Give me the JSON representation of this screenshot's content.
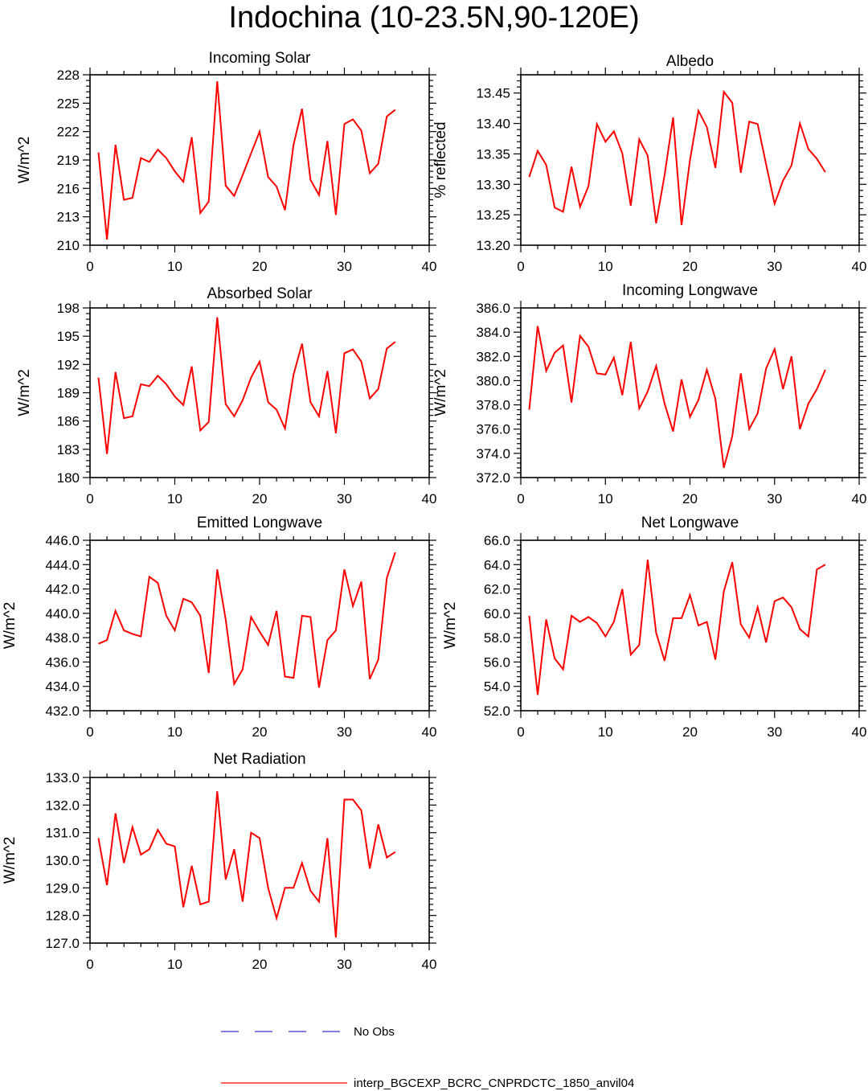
{
  "title": "Indochina (10-23.5N,90-120E)",
  "legend": [
    {
      "label": "No Obs",
      "color": "#3333cc",
      "style": "dashed"
    },
    {
      "label": "interp_BGCEXP_BCRC_CNPRDCTC_1850_anvil04",
      "color": "#ff0000",
      "style": "solid"
    }
  ],
  "chart_data": [
    {
      "type": "line",
      "title": "Incoming Solar",
      "ylabel": "W/m^2",
      "xlim": [
        0,
        40
      ],
      "xticks": [
        "0",
        "10",
        "20",
        "30",
        "40"
      ],
      "ylim": [
        210,
        228
      ],
      "yticks": [
        "210",
        "213",
        "216",
        "219",
        "222",
        "225",
        "228"
      ],
      "series": [
        {
          "color": "#ff0000",
          "x": [
            1,
            2,
            3,
            4,
            5,
            6,
            7,
            8,
            9,
            10,
            11,
            12,
            13,
            14,
            15,
            16,
            17,
            18,
            19,
            20,
            21,
            22,
            23,
            24,
            25,
            26,
            27,
            28,
            29,
            30,
            31,
            32,
            33,
            34,
            35,
            36
          ],
          "values": [
            219.8,
            210.6,
            220.6,
            214.8,
            215.0,
            219.2,
            218.8,
            220.1,
            219.2,
            217.8,
            216.7,
            221.4,
            213.4,
            214.6,
            227.3,
            216.3,
            215.2,
            217.4,
            219.7,
            222.0,
            217.2,
            216.2,
            213.7,
            220.6,
            224.4,
            216.9,
            215.3,
            221.0,
            213.2,
            222.8,
            223.3,
            222.1,
            217.6,
            218.6,
            223.6,
            224.3
          ]
        }
      ]
    },
    {
      "type": "line",
      "title": "Albedo",
      "ylabel": "% reflected",
      "xlim": [
        0,
        40
      ],
      "xticks": [
        "0",
        "10",
        "20",
        "30",
        "40"
      ],
      "ylim": [
        13.2,
        13.48
      ],
      "yticks": [
        "13.20",
        "13.25",
        "13.30",
        "13.35",
        "13.40",
        "13.45"
      ],
      "series": [
        {
          "color": "#ff0000",
          "x": [
            1,
            2,
            3,
            4,
            5,
            6,
            7,
            8,
            9,
            10,
            11,
            12,
            13,
            14,
            15,
            16,
            17,
            18,
            19,
            20,
            21,
            22,
            23,
            24,
            25,
            26,
            27,
            28,
            29,
            30,
            31,
            32,
            33,
            34,
            35,
            36
          ],
          "values": [
            13.312,
            13.355,
            13.332,
            13.262,
            13.255,
            13.329,
            13.263,
            13.297,
            13.399,
            13.37,
            13.387,
            13.351,
            13.265,
            13.374,
            13.347,
            13.236,
            13.315,
            13.41,
            13.233,
            13.34,
            13.421,
            13.394,
            13.327,
            13.452,
            13.434,
            13.319,
            13.403,
            13.399,
            13.333,
            13.268,
            13.306,
            13.331,
            13.4,
            13.358,
            13.342,
            13.32
          ]
        }
      ]
    },
    {
      "type": "line",
      "title": "Absorbed Solar",
      "ylabel": "W/m^2",
      "xlim": [
        0,
        40
      ],
      "xticks": [
        "0",
        "10",
        "20",
        "30",
        "40"
      ],
      "ylim": [
        180,
        198
      ],
      "yticks": [
        "180",
        "183",
        "186",
        "189",
        "192",
        "195",
        "198"
      ],
      "series": [
        {
          "color": "#ff0000",
          "x": [
            1,
            2,
            3,
            4,
            5,
            6,
            7,
            8,
            9,
            10,
            11,
            12,
            13,
            14,
            15,
            16,
            17,
            18,
            19,
            20,
            21,
            22,
            23,
            24,
            25,
            26,
            27,
            28,
            29,
            30,
            31,
            32,
            33,
            34,
            35,
            36
          ],
          "values": [
            190.6,
            182.5,
            191.2,
            186.3,
            186.5,
            189.9,
            189.7,
            190.8,
            189.9,
            188.6,
            187.7,
            191.8,
            185.0,
            185.9,
            197.0,
            187.8,
            186.5,
            188.2,
            190.6,
            192.3,
            188.0,
            187.2,
            185.2,
            190.9,
            194.2,
            188.0,
            186.5,
            191.3,
            184.7,
            193.2,
            193.6,
            192.3,
            188.4,
            189.4,
            193.7,
            194.4
          ]
        }
      ]
    },
    {
      "type": "line",
      "title": "Incoming Longwave",
      "ylabel": "W/m^2",
      "xlim": [
        0,
        40
      ],
      "xticks": [
        "0",
        "10",
        "20",
        "30",
        "40"
      ],
      "ylim": [
        372,
        386
      ],
      "yticks": [
        "372.0",
        "374.0",
        "376.0",
        "378.0",
        "380.0",
        "382.0",
        "384.0",
        "386.0"
      ],
      "series": [
        {
          "color": "#ff0000",
          "x": [
            1,
            2,
            3,
            4,
            5,
            6,
            7,
            8,
            9,
            10,
            11,
            12,
            13,
            14,
            15,
            16,
            17,
            18,
            19,
            20,
            21,
            22,
            23,
            24,
            25,
            26,
            27,
            28,
            29,
            30,
            31,
            32,
            33,
            34,
            35,
            36
          ],
          "values": [
            377.6,
            384.5,
            380.8,
            382.3,
            382.9,
            378.2,
            383.7,
            382.8,
            380.6,
            380.5,
            381.9,
            378.8,
            383.2,
            377.7,
            379.1,
            381.2,
            378.1,
            375.8,
            380.1,
            377.0,
            378.4,
            380.9,
            378.5,
            372.8,
            375.4,
            380.6,
            376.0,
            377.3,
            381.0,
            382.6,
            379.3,
            382.0,
            376.0,
            378.1,
            379.3,
            380.9
          ]
        }
      ]
    },
    {
      "type": "line",
      "title": "Emitted Longwave",
      "ylabel": "W/m^2",
      "xlim": [
        0,
        40
      ],
      "xticks": [
        "0",
        "10",
        "20",
        "30",
        "40"
      ],
      "ylim": [
        432,
        446
      ],
      "yticks": [
        "432.0",
        "434.0",
        "436.0",
        "438.0",
        "440.0",
        "442.0",
        "444.0",
        "446.0"
      ],
      "series": [
        {
          "color": "#ff0000",
          "x": [
            1,
            2,
            3,
            4,
            5,
            6,
            7,
            8,
            9,
            10,
            11,
            12,
            13,
            14,
            15,
            16,
            17,
            18,
            19,
            20,
            21,
            22,
            23,
            24,
            25,
            26,
            27,
            28,
            29,
            30,
            31,
            32,
            33,
            34,
            35,
            36
          ],
          "values": [
            437.5,
            437.8,
            440.2,
            438.6,
            438.3,
            438.1,
            443.0,
            442.5,
            439.8,
            438.6,
            441.2,
            440.9,
            439.8,
            435.1,
            443.6,
            439.5,
            434.2,
            435.4,
            439.7,
            438.5,
            437.4,
            440.2,
            434.8,
            434.7,
            439.8,
            439.7,
            433.9,
            437.8,
            438.6,
            443.6,
            440.6,
            442.6,
            434.6,
            436.2,
            442.9,
            445.0
          ]
        }
      ]
    },
    {
      "type": "line",
      "title": "Net Longwave",
      "ylabel": "W/m^2",
      "xlim": [
        0,
        40
      ],
      "xticks": [
        "0",
        "10",
        "20",
        "30",
        "40"
      ],
      "ylim": [
        52,
        66
      ],
      "yticks": [
        "52.0",
        "54.0",
        "56.0",
        "58.0",
        "60.0",
        "62.0",
        "64.0",
        "66.0"
      ],
      "series": [
        {
          "color": "#ff0000",
          "x": [
            1,
            2,
            3,
            4,
            5,
            6,
            7,
            8,
            9,
            10,
            11,
            12,
            13,
            14,
            15,
            16,
            17,
            18,
            19,
            20,
            21,
            22,
            23,
            24,
            25,
            26,
            27,
            28,
            29,
            30,
            31,
            32,
            33,
            34,
            35,
            36
          ],
          "values": [
            59.8,
            53.3,
            59.5,
            56.3,
            55.4,
            59.8,
            59.3,
            59.7,
            59.2,
            58.1,
            59.3,
            62.0,
            56.6,
            57.4,
            64.4,
            58.4,
            56.1,
            59.6,
            59.6,
            61.5,
            59.0,
            59.3,
            56.2,
            61.8,
            64.2,
            59.1,
            58.0,
            60.5,
            57.6,
            61.0,
            61.3,
            60.5,
            58.7,
            58.1,
            63.6,
            64.0
          ]
        }
      ]
    },
    {
      "type": "line",
      "title": "Net Radiation",
      "ylabel": "W/m^2",
      "xlim": [
        0,
        40
      ],
      "xticks": [
        "0",
        "10",
        "20",
        "30",
        "40"
      ],
      "ylim": [
        127,
        133
      ],
      "yticks": [
        "127.0",
        "128.0",
        "129.0",
        "130.0",
        "131.0",
        "132.0",
        "133.0"
      ],
      "series": [
        {
          "color": "#ff0000",
          "x": [
            1,
            2,
            3,
            4,
            5,
            6,
            7,
            8,
            9,
            10,
            11,
            12,
            13,
            14,
            15,
            16,
            17,
            18,
            19,
            20,
            21,
            22,
            23,
            24,
            25,
            26,
            27,
            28,
            29,
            30,
            31,
            32,
            33,
            34,
            35,
            36
          ],
          "values": [
            130.8,
            129.1,
            131.7,
            129.9,
            131.2,
            130.2,
            130.4,
            131.1,
            130.6,
            130.5,
            128.3,
            129.8,
            128.4,
            128.5,
            132.5,
            129.3,
            130.4,
            128.5,
            131.0,
            130.8,
            129.0,
            127.9,
            129.0,
            129.0,
            129.9,
            128.9,
            128.5,
            130.8,
            127.2,
            132.2,
            132.2,
            131.8,
            129.7,
            131.3,
            130.1,
            130.3
          ]
        }
      ]
    }
  ]
}
